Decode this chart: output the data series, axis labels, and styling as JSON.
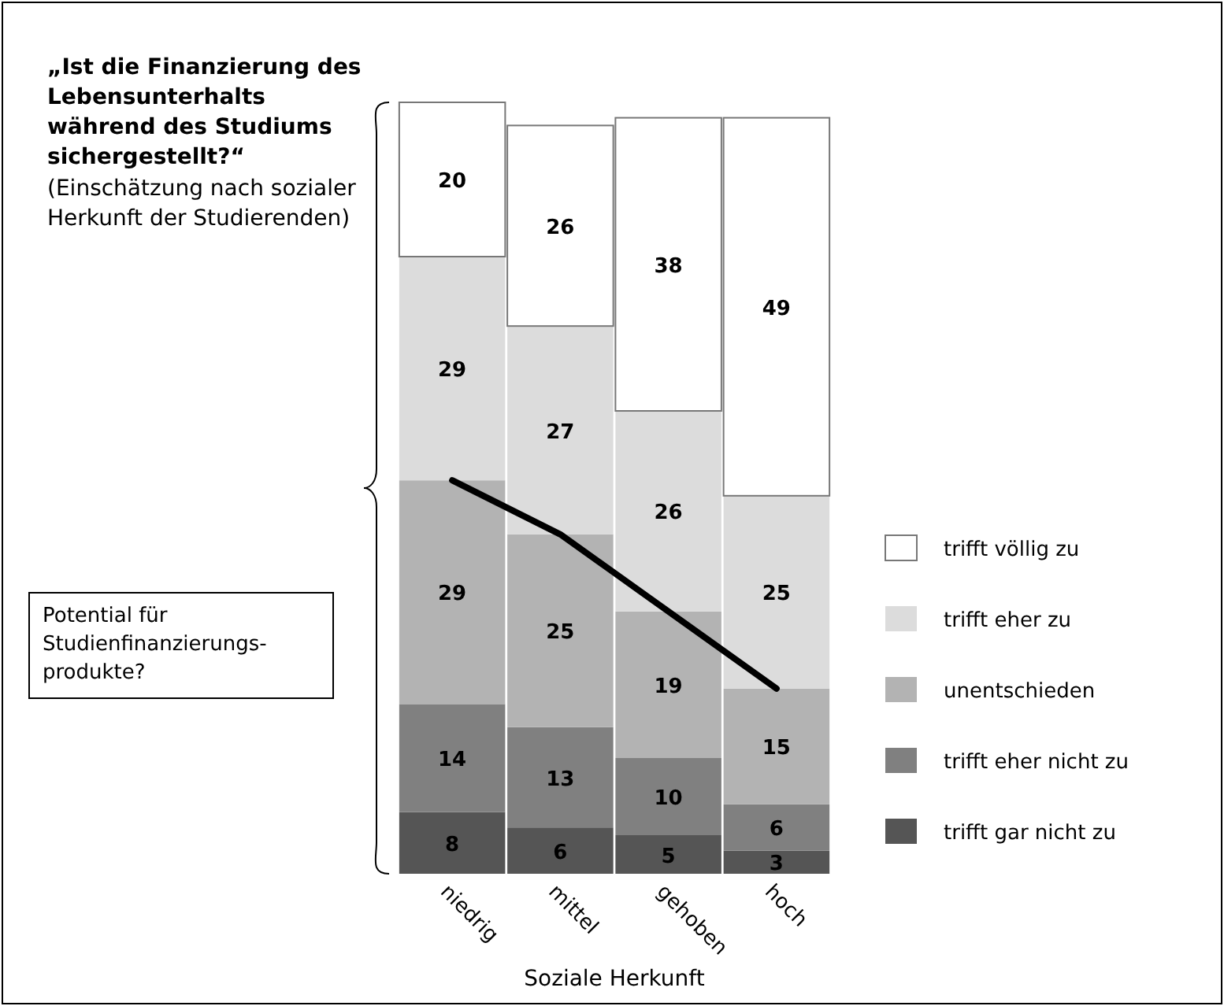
{
  "chart_data": {
    "type": "bar",
    "stacked": true,
    "legend": "right",
    "title": "„Ist die Finanzierung des Lebensunterhalts während des Studiums sichergestellt?“",
    "subtitle": "(Einschätzung nach sozialer Herkunft der Studierenden)",
    "xlabel": "Soziale Herkunft",
    "annotations": [
      "Potential für Studienfinanzierungs-produkte?"
    ],
    "categories": [
      "niedrig",
      "mittel",
      "gehoben",
      "hoch"
    ],
    "series": [
      {
        "name": "trifft gar nicht zu",
        "color": "#555555",
        "values": [
          8,
          6,
          5,
          3
        ],
        "value_labels": [
          "8",
          "6",
          "5",
          "3"
        ]
      },
      {
        "name": "trifft eher nicht zu",
        "color": "#808080",
        "values": [
          14,
          13,
          10,
          6
        ],
        "value_labels": [
          "14",
          "13",
          "10",
          "6"
        ]
      },
      {
        "name": "unentschieden",
        "color": "#b3b3b3",
        "values": [
          29,
          25,
          19,
          15
        ],
        "value_labels": [
          "29",
          "25",
          "19",
          "15"
        ]
      },
      {
        "name": "trifft eher zu",
        "color": "#dcdcdc",
        "values": [
          29,
          27,
          26,
          25
        ],
        "value_labels": [
          "29",
          "27",
          "26",
          "25"
        ]
      },
      {
        "name": "trifft völlig zu",
        "color": "#ffffff",
        "values": [
          20,
          26,
          38,
          49
        ],
        "value_labels": [
          "20",
          "26",
          "38",
          "49"
        ]
      },
      {
        "type": "line",
        "color": "#000000",
        "values": [
          51,
          44,
          34,
          24
        ]
      }
    ]
  }
}
